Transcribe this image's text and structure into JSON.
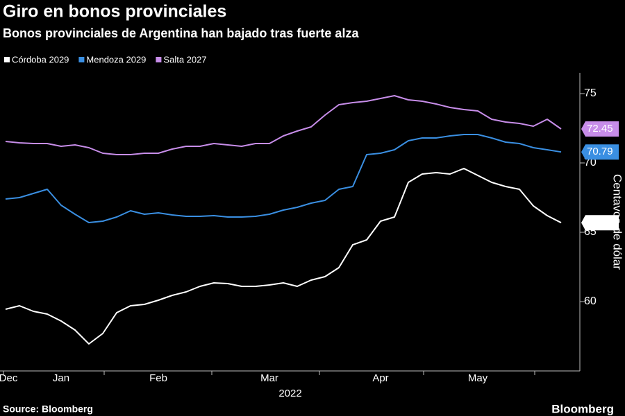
{
  "chart_data": {
    "type": "line",
    "title": "Giro en bonos provinciales",
    "subtitle": "Bonos provinciales de Argentina han bajado tras fuerte alza",
    "ylabel": "Centavos de dólar",
    "xlabel": "2022",
    "source": "Source: Bloomberg",
    "brand": "Bloomberg",
    "y_axis_position": "right",
    "grid": false,
    "categories": [
      "Dec",
      null,
      null,
      null,
      "Jan",
      null,
      null,
      null,
      null,
      null,
      null,
      "Feb",
      null,
      null,
      null,
      null,
      null,
      null,
      null,
      "Mar",
      null,
      null,
      null,
      null,
      null,
      null,
      null,
      "Apr",
      null,
      null,
      null,
      null,
      null,
      null,
      "May",
      null,
      null,
      null,
      null,
      null,
      null
    ],
    "series": [
      {
        "name": "Córdoba 2029",
        "color": "#ffffff",
        "values": [
          59.45,
          59.7,
          59.3,
          59.1,
          58.6,
          57.95,
          56.95,
          57.7,
          59.2,
          59.7,
          59.8,
          60.1,
          60.45,
          60.7,
          61.1,
          61.35,
          61.3,
          61.1,
          61.1,
          61.2,
          61.35,
          61.1,
          61.55,
          61.8,
          62.45,
          64.1,
          64.45,
          65.8,
          66.1,
          68.6,
          69.2,
          69.3,
          69.2,
          69.6,
          69.1,
          68.6,
          68.3,
          68.1,
          66.9,
          66.2,
          65.69
        ]
      },
      {
        "name": "Mendoza 2029",
        "color": "#3a8fe2",
        "values": [
          67.4,
          67.5,
          67.8,
          68.1,
          66.95,
          66.3,
          65.7,
          65.8,
          66.1,
          66.55,
          66.3,
          66.4,
          66.25,
          66.15,
          66.15,
          66.2,
          66.1,
          66.1,
          66.15,
          66.3,
          66.6,
          66.8,
          67.1,
          67.3,
          68.1,
          68.3,
          70.6,
          70.7,
          70.95,
          71.6,
          71.8,
          71.8,
          71.95,
          72.05,
          72.05,
          71.8,
          71.5,
          71.4,
          71.1,
          70.95,
          70.79
        ]
      },
      {
        "name": "Salta 2027",
        "color": "#c78de9",
        "values": [
          71.55,
          71.45,
          71.4,
          71.4,
          71.2,
          71.3,
          71.1,
          70.7,
          70.6,
          70.6,
          70.7,
          70.7,
          71.0,
          71.2,
          71.2,
          71.4,
          71.3,
          71.2,
          71.4,
          71.4,
          71.95,
          72.3,
          72.6,
          73.45,
          74.2,
          74.35,
          74.45,
          74.65,
          74.85,
          74.55,
          74.45,
          74.25,
          74.0,
          73.85,
          73.75,
          73.15,
          72.95,
          72.85,
          72.65,
          73.15,
          72.45
        ]
      }
    ],
    "ylim": [
      55,
      76.5
    ],
    "yticks": [
      60,
      65,
      70,
      75
    ]
  }
}
